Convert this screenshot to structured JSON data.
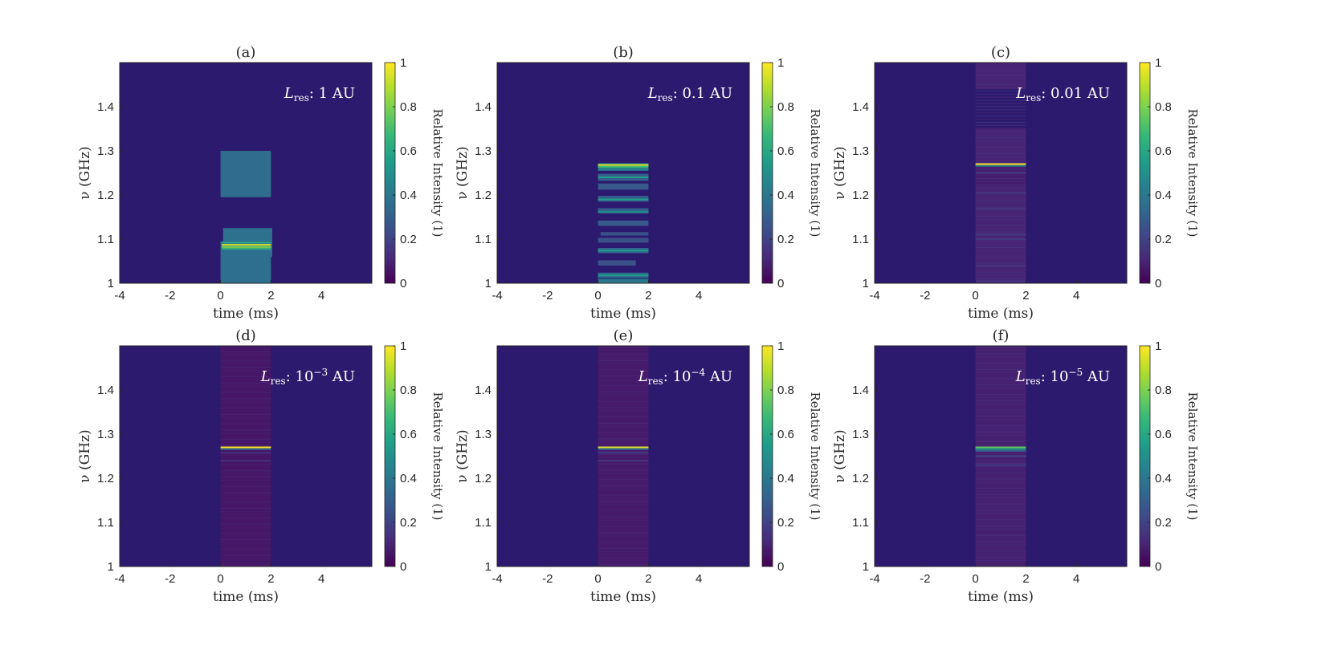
{
  "figure": {
    "colormap": [
      "#440154",
      "#482878",
      "#3e4989",
      "#31688e",
      "#26828e",
      "#1f9e89",
      "#35b779",
      "#6ece58",
      "#b5de2b",
      "#fde725"
    ],
    "background_color": "#2c1a6e"
  },
  "chart_data": [
    {
      "type": "heatmap",
      "title": "(a)",
      "xlabel": "time (ms)",
      "ylabel": "ν (GHz)",
      "xlim": [
        -4,
        6
      ],
      "ylim": [
        1,
        1.5
      ],
      "xticks": [
        "-4",
        "-2",
        "0",
        "2",
        "4"
      ],
      "yticks": [
        "1",
        "1.1",
        "1.2",
        "1.3",
        "1.4"
      ],
      "annotation": {
        "symbol": "L",
        "subscript": "res",
        "text": ": 1 AU"
      },
      "colorbar": {
        "label": "Relative Intensity (1)",
        "ticks": [
          "0",
          "0.2",
          "0.4",
          "0.6",
          "0.8",
          "1"
        ],
        "range": [
          0,
          1
        ]
      },
      "blocks": [
        {
          "t0": 0,
          "t1": 2,
          "f0": 1.195,
          "f1": 1.3,
          "value": 0.35
        },
        {
          "t0": 0.1,
          "t1": 2.05,
          "f0": 1.06,
          "f1": 1.125,
          "value": 0.37
        },
        {
          "t0": 0,
          "t1": 2,
          "f0": 1.0,
          "f1": 1.095,
          "value": 0.36
        }
      ],
      "lines": [
        {
          "t0": 0.05,
          "t1": 2,
          "f": 1.087,
          "value": 0.95
        },
        {
          "t0": 0.05,
          "t1": 2,
          "f": 1.082,
          "value": 0.8
        },
        {
          "t0": 0.05,
          "t1": 2,
          "f": 1.078,
          "value": 0.65
        },
        {
          "t0": 0.05,
          "t1": 2,
          "f": 1.092,
          "value": 0.6
        }
      ]
    },
    {
      "type": "heatmap",
      "title": "(b)",
      "xlabel": "time (ms)",
      "ylabel": "ν (GHz)",
      "xlim": [
        -4,
        6
      ],
      "ylim": [
        1,
        1.5
      ],
      "xticks": [
        "-4",
        "-2",
        "0",
        "2",
        "4"
      ],
      "yticks": [
        "1",
        "1.1",
        "1.2",
        "1.3",
        "1.4"
      ],
      "annotation": {
        "symbol": "L",
        "subscript": "res",
        "text": ": 0.1 AU"
      },
      "colorbar": {
        "label": "Relative Intensity (1)",
        "ticks": [
          "0",
          "0.2",
          "0.4",
          "0.6",
          "0.8",
          "1"
        ],
        "range": [
          0,
          1
        ]
      },
      "blocks": [
        {
          "t0": 0,
          "t1": 2,
          "f0": 1.255,
          "f1": 1.272,
          "value": 0.45
        },
        {
          "t0": 0,
          "t1": 2,
          "f0": 1.232,
          "f1": 1.248,
          "value": 0.3
        },
        {
          "t0": 0,
          "t1": 2,
          "f0": 1.212,
          "f1": 1.226,
          "value": 0.28
        },
        {
          "t0": 0,
          "t1": 2,
          "f0": 1.185,
          "f1": 1.198,
          "value": 0.3
        },
        {
          "t0": 0,
          "t1": 2,
          "f0": 1.158,
          "f1": 1.17,
          "value": 0.3
        },
        {
          "t0": 0,
          "t1": 2,
          "f0": 1.13,
          "f1": 1.142,
          "value": 0.28
        },
        {
          "t0": 0.1,
          "t1": 2,
          "f0": 1.108,
          "f1": 1.116,
          "value": 0.25
        },
        {
          "t0": 0,
          "t1": 2,
          "f0": 1.092,
          "f1": 1.103,
          "value": 0.25
        },
        {
          "t0": 0,
          "t1": 2,
          "f0": 1.068,
          "f1": 1.08,
          "value": 0.32
        },
        {
          "t0": 0,
          "t1": 1.5,
          "f0": 1.04,
          "f1": 1.052,
          "value": 0.25
        },
        {
          "t0": 0,
          "t1": 2,
          "f0": 1.012,
          "f1": 1.024,
          "value": 0.35
        },
        {
          "t0": 0,
          "t1": 2,
          "f0": 1.0,
          "f1": 1.01,
          "value": 0.4
        }
      ],
      "lines": [
        {
          "t0": 0,
          "t1": 2,
          "f": 1.268,
          "value": 0.95
        },
        {
          "t0": 0,
          "t1": 2,
          "f": 1.264,
          "value": 0.7
        },
        {
          "t0": 0,
          "t1": 2,
          "f": 1.24,
          "value": 0.55
        },
        {
          "t0": 0,
          "t1": 2,
          "f": 1.19,
          "value": 0.55
        },
        {
          "t0": 0,
          "t1": 2,
          "f": 1.162,
          "value": 0.5
        },
        {
          "t0": 0,
          "t1": 2,
          "f": 1.074,
          "value": 0.55
        },
        {
          "t0": 0,
          "t1": 2,
          "f": 1.018,
          "value": 0.55
        }
      ]
    },
    {
      "type": "heatmap",
      "title": "(c)",
      "xlabel": "time (ms)",
      "ylabel": "ν (GHz)",
      "xlim": [
        -4,
        6
      ],
      "ylim": [
        1,
        1.5
      ],
      "xticks": [
        "-4",
        "-2",
        "0",
        "2",
        "4"
      ],
      "yticks": [
        "1",
        "1.1",
        "1.2",
        "1.3",
        "1.4"
      ],
      "annotation": {
        "symbol": "L",
        "subscript": "res",
        "text": ": 0.01 AU"
      },
      "colorbar": {
        "label": "Relative Intensity (1)",
        "ticks": [
          "0",
          "0.2",
          "0.4",
          "0.6",
          "0.8",
          "1"
        ],
        "range": [
          0,
          1
        ]
      },
      "blocks": [
        {
          "t0": 0,
          "t1": 2,
          "f0": 1.44,
          "f1": 1.5,
          "value": 0.1
        },
        {
          "t0": 0,
          "t1": 2,
          "f0": 1.27,
          "f1": 1.35,
          "value": 0.1
        },
        {
          "t0": 0,
          "t1": 2,
          "f0": 1.22,
          "f1": 1.27,
          "value": 0.08
        },
        {
          "t0": 0,
          "t1": 2,
          "f0": 1.0,
          "f1": 1.22,
          "value": 0.1
        }
      ],
      "lines": [
        {
          "t0": 0,
          "t1": 2,
          "f": 1.27,
          "value": 1.0
        },
        {
          "t0": 0,
          "t1": 2,
          "f": 1.266,
          "value": 0.4
        },
        {
          "t0": 0,
          "t1": 2,
          "f": 1.25,
          "value": 0.18
        },
        {
          "t0": 0,
          "t1": 2,
          "f": 1.205,
          "value": 0.16
        },
        {
          "t0": 0,
          "t1": 2,
          "f": 1.17,
          "value": 0.16
        },
        {
          "t0": 0,
          "t1": 2,
          "f": 1.11,
          "value": 0.18
        },
        {
          "t0": 0,
          "t1": 2,
          "f": 1.1,
          "value": 0.16
        },
        {
          "t0": 0,
          "t1": 2,
          "f": 1.04,
          "value": 0.15
        },
        {
          "t0": 0,
          "t1": 2,
          "f": 1.005,
          "value": 0.15
        }
      ]
    },
    {
      "type": "heatmap",
      "title": "(d)",
      "xlabel": "time (ms)",
      "ylabel": "ν (GHz)",
      "xlim": [
        -4,
        6
      ],
      "ylim": [
        1,
        1.5
      ],
      "xticks": [
        "-4",
        "-2",
        "0",
        "2",
        "4"
      ],
      "yticks": [
        "1",
        "1.1",
        "1.2",
        "1.3",
        "1.4"
      ],
      "annotation": {
        "symbol": "L",
        "subscript": "res",
        "text": ": 10",
        "superscript": "−3",
        "suffix": " AU"
      },
      "colorbar": {
        "label": "Relative Intensity (1)",
        "ticks": [
          "0",
          "0.2",
          "0.4",
          "0.6",
          "0.8",
          "1"
        ],
        "range": [
          0,
          1
        ]
      },
      "blocks": [
        {
          "t0": 0,
          "t1": 2,
          "f0": 1.0,
          "f1": 1.5,
          "value": 0.06
        }
      ],
      "lines": [
        {
          "t0": 0,
          "t1": 2,
          "f": 1.27,
          "value": 1.0
        },
        {
          "t0": 0,
          "t1": 2,
          "f": 1.266,
          "value": 0.35
        },
        {
          "t0": 0,
          "t1": 2,
          "f": 1.258,
          "value": 0.15
        },
        {
          "t0": 0,
          "t1": 2,
          "f": 1.24,
          "value": 0.12
        }
      ]
    },
    {
      "type": "heatmap",
      "title": "(e)",
      "xlabel": "time (ms)",
      "ylabel": "ν (GHz)",
      "xlim": [
        -4,
        6
      ],
      "ylim": [
        1,
        1.5
      ],
      "xticks": [
        "-4",
        "-2",
        "0",
        "2",
        "4"
      ],
      "yticks": [
        "1",
        "1.1",
        "1.2",
        "1.3",
        "1.4"
      ],
      "annotation": {
        "symbol": "L",
        "subscript": "res",
        "text": ": 10",
        "superscript": "−4",
        "suffix": " AU"
      },
      "colorbar": {
        "label": "Relative Intensity (1)",
        "ticks": [
          "0",
          "0.2",
          "0.4",
          "0.6",
          "0.8",
          "1"
        ],
        "range": [
          0,
          1
        ]
      },
      "blocks": [
        {
          "t0": 0,
          "t1": 2,
          "f0": 1.0,
          "f1": 1.5,
          "value": 0.07
        }
      ],
      "lines": [
        {
          "t0": 0,
          "t1": 2,
          "f": 1.27,
          "value": 0.95
        },
        {
          "t0": 0,
          "t1": 2,
          "f": 1.266,
          "value": 0.35
        },
        {
          "t0": 0,
          "t1": 2,
          "f": 1.258,
          "value": 0.18
        },
        {
          "t0": 0,
          "t1": 2,
          "f": 1.24,
          "value": 0.15
        }
      ]
    },
    {
      "type": "heatmap",
      "title": "(f)",
      "xlabel": "time (ms)",
      "ylabel": "ν (GHz)",
      "xlim": [
        -4,
        6
      ],
      "ylim": [
        1,
        1.5
      ],
      "xticks": [
        "-4",
        "-2",
        "0",
        "2",
        "4"
      ],
      "yticks": [
        "1",
        "1.1",
        "1.2",
        "1.3",
        "1.4"
      ],
      "annotation": {
        "symbol": "L",
        "subscript": "res",
        "text": ": 10",
        "superscript": "−5",
        "suffix": " AU"
      },
      "colorbar": {
        "label": "Relative Intensity (1)",
        "ticks": [
          "0",
          "0.2",
          "0.4",
          "0.6",
          "0.8",
          "1"
        ],
        "range": [
          0,
          1
        ]
      },
      "blocks": [
        {
          "t0": 0,
          "t1": 2,
          "f0": 1.0,
          "f1": 1.5,
          "value": 0.09
        }
      ],
      "lines": [
        {
          "t0": 0,
          "t1": 2,
          "f": 1.27,
          "value": 0.75
        },
        {
          "t0": 0,
          "t1": 2,
          "f": 1.266,
          "value": 0.55
        },
        {
          "t0": 0,
          "t1": 2,
          "f": 1.262,
          "value": 0.3
        },
        {
          "t0": 0,
          "t1": 2,
          "f": 1.25,
          "value": 0.2
        },
        {
          "t0": 0,
          "t1": 2,
          "f": 1.23,
          "value": 0.18
        }
      ]
    }
  ]
}
